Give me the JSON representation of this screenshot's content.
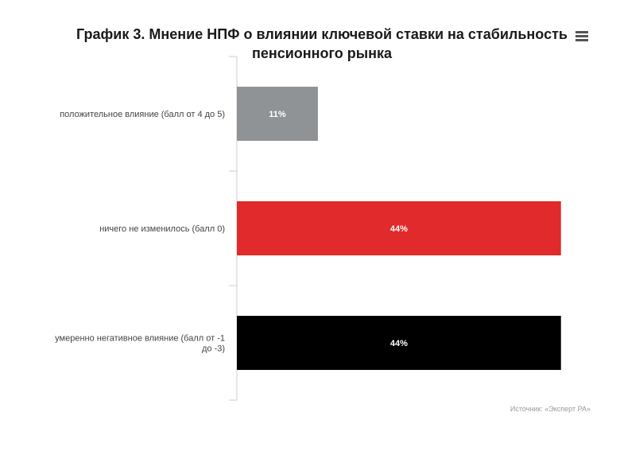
{
  "header": {
    "title": "График 3. Мнение НПФ о влиянии ключевой ставки на стабильность пенсионного рынка",
    "menu_icon": "hamburger-menu-icon"
  },
  "footer": {
    "source": "Источник: «Эксперт РА»"
  },
  "chart_data": {
    "type": "bar",
    "orientation": "horizontal",
    "title": "График 3. Мнение НПФ о влиянии ключевой ставки на стабильность пенсионного рынка",
    "categories": [
      "положительное влияние (балл от 4 до 5)",
      "ничего не изменилось (балл 0)",
      "умеренно негативное влияние (балл от -1 до -3)"
    ],
    "values": [
      11,
      44,
      44
    ],
    "data_labels": [
      "11%",
      "44%",
      "44%"
    ],
    "colors": [
      "#8f9396",
      "#e02a2b",
      "#000000"
    ],
    "xlim": [
      0,
      45
    ],
    "grid": false,
    "legend": "none"
  }
}
